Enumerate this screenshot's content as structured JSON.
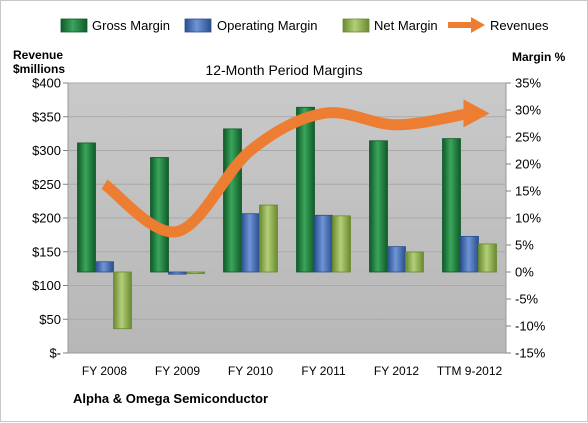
{
  "chart_data": {
    "type": "bar",
    "title": "12-Month Period Margins",
    "categories": [
      "FY 2008",
      "FY 2009",
      "FY 2010",
      "FY 2011",
      "FY 2012",
      "TTM 9-2012"
    ],
    "left_axis": {
      "label_line1": "Revenue",
      "label_line2": "$millions",
      "ylim": [
        0,
        400
      ],
      "ticks": [
        0,
        50,
        100,
        150,
        200,
        250,
        300,
        350,
        400
      ],
      "tick_labels": [
        "$-",
        "$50",
        "$100",
        "$150",
        "$200",
        "$250",
        "$300",
        "$350",
        "$400"
      ]
    },
    "right_axis": {
      "label": "Margin %",
      "ylim": [
        -15,
        35
      ],
      "ticks": [
        -15,
        -10,
        -5,
        0,
        5,
        10,
        15,
        20,
        25,
        30,
        35
      ],
      "tick_labels": [
        "-15%",
        "-10%",
        "-5%",
        "0%",
        "5%",
        "10%",
        "15%",
        "20%",
        "25%",
        "30%",
        "35%"
      ]
    },
    "series": [
      {
        "name": "Gross Margin",
        "axis": "right",
        "kind": "bar",
        "color": "#1e7a3c",
        "values": [
          23.9,
          21.2,
          26.5,
          30.5,
          24.3,
          24.7
        ]
      },
      {
        "name": "Operating Margin",
        "axis": "right",
        "kind": "bar",
        "color": "#3f6ab0",
        "values": [
          1.9,
          -0.4,
          10.8,
          10.5,
          4.7,
          6.6
        ]
      },
      {
        "name": "Net Margin",
        "axis": "right",
        "kind": "bar",
        "color": "#8caa4a",
        "values": [
          -10.5,
          -0.3,
          12.4,
          10.4,
          3.7,
          5.2
        ]
      },
      {
        "name": "Revenues",
        "axis": "left",
        "kind": "line",
        "color": "#ed7d31",
        "values": [
          250,
          180,
          300,
          355,
          338,
          355
        ]
      }
    ],
    "legend": [
      "Gross Margin",
      "Operating Margin",
      "Net Margin",
      "Revenues"
    ],
    "legend_position": "top",
    "grid": true,
    "plot_background": "#c0c0c0"
  },
  "footer": "Alpha & Omega Semiconductor"
}
